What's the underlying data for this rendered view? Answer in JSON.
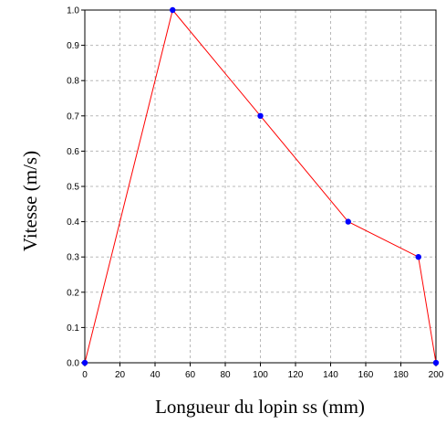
{
  "chart_data": {
    "type": "line",
    "title": "",
    "xlabel": "Longueur du lopin ss (mm)",
    "ylabel": "Vitesse (m/s)",
    "xlim": [
      0,
      200
    ],
    "ylim": [
      0,
      1.0
    ],
    "xticks": [
      0,
      20,
      40,
      60,
      80,
      100,
      120,
      140,
      160,
      180,
      200
    ],
    "yticks": [
      0.0,
      0.1,
      0.2,
      0.3,
      0.4,
      0.5,
      0.6,
      0.7,
      0.8,
      0.9,
      1.0
    ],
    "xtick_labels": [
      "0",
      "20",
      "40",
      "60",
      "80",
      "100",
      "120",
      "140",
      "160",
      "180",
      "200"
    ],
    "ytick_labels": [
      "0.0",
      "0.1",
      "0.2",
      "0.3",
      "0.4",
      "0.5",
      "0.6",
      "0.7",
      "0.8",
      "0.9",
      "1.0"
    ],
    "grid": true,
    "series": [
      {
        "line_color": "#ff0000",
        "marker_color": "#0000ff",
        "x": [
          0,
          50,
          100,
          150,
          190,
          200
        ],
        "y": [
          0.0,
          1.0,
          0.7,
          0.4,
          0.3,
          0.0
        ]
      }
    ]
  }
}
